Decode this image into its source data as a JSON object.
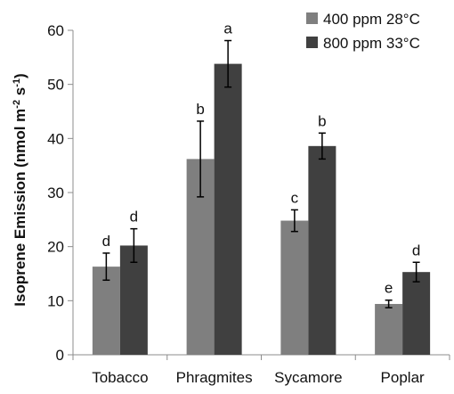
{
  "chart_data": {
    "type": "bar",
    "ylabel_parts": [
      "Isoprene Emission (nmol m",
      "-2",
      " s",
      "-1",
      ")"
    ],
    "xlabel": "",
    "ylim": [
      0,
      60
    ],
    "yticks": [
      0,
      10,
      20,
      30,
      40,
      50,
      60
    ],
    "categories": [
      "Tobacco",
      "Phragmites",
      "Sycamore",
      "Poplar"
    ],
    "series": [
      {
        "name": "400 ppm 28°C",
        "color": "#7f7f7f",
        "values": [
          16.3,
          36.2,
          24.8,
          9.4
        ],
        "errors": [
          2.5,
          7.0,
          2.0,
          0.7
        ],
        "letters": [
          "d",
          "b",
          "c",
          "e"
        ]
      },
      {
        "name": "800 ppm 33°C",
        "color": "#404040",
        "values": [
          20.2,
          53.8,
          38.6,
          15.3
        ],
        "errors": [
          3.1,
          4.3,
          2.4,
          1.8
        ],
        "letters": [
          "d",
          "a",
          "b",
          "d"
        ]
      }
    ],
    "legend_position": "top-right",
    "grid": false
  }
}
